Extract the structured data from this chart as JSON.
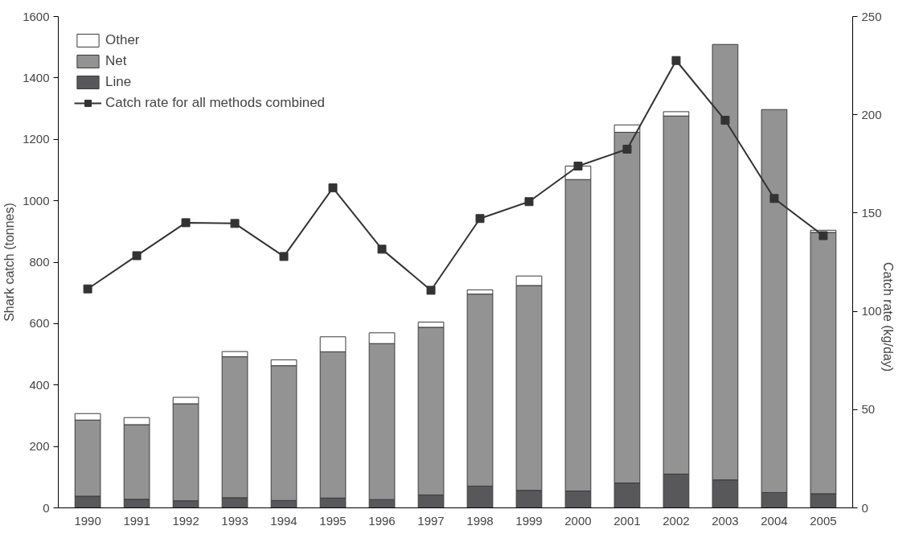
{
  "chart_data": {
    "type": "bar",
    "stacked": true,
    "xlabel": null,
    "ylabel": "Shark catch (tonnes)",
    "y2label": "Catch rate (kg/day)",
    "categories": [
      "1990",
      "1991",
      "1992",
      "1993",
      "1994",
      "1995",
      "1996",
      "1997",
      "1998",
      "1999",
      "2000",
      "2001",
      "2002",
      "2003",
      "2004",
      "2005"
    ],
    "series": [
      {
        "name": "Line",
        "color": "#58585a",
        "values": [
          38,
          28,
          23,
          33,
          24,
          32,
          27,
          42,
          71,
          57,
          55,
          81,
          110,
          91,
          50,
          46
        ]
      },
      {
        "name": "Net",
        "color": "#939393",
        "values": [
          248,
          243,
          316,
          459,
          439,
          476,
          508,
          546,
          625,
          667,
          1014,
          1142,
          1166,
          1418,
          1247,
          851
        ]
      },
      {
        "name": "Other",
        "color": "#ffffff",
        "values": [
          21,
          23,
          21,
          17,
          19,
          49,
          35,
          17,
          14,
          31,
          44,
          24,
          14,
          null,
          null,
          7
        ]
      },
      {
        "name": "Catch rate for all methods combined",
        "type": "line",
        "axis": "y2",
        "color": "#333333",
        "marker": "square",
        "values": [
          111.4,
          128.3,
          145.1,
          144.7,
          127.9,
          162.8,
          131.6,
          110.7,
          147.2,
          155.8,
          173.9,
          182.5,
          227.6,
          197.2,
          157.4,
          138.5
        ]
      }
    ],
    "ylim": [
      0,
      1600
    ],
    "yticks": [
      0,
      200,
      400,
      600,
      800,
      1000,
      1200,
      1400,
      1600
    ],
    "y2lim": [
      0,
      250
    ],
    "y2ticks": [
      0,
      50,
      100,
      150,
      200,
      250
    ],
    "grid": false,
    "legend": "top left"
  }
}
